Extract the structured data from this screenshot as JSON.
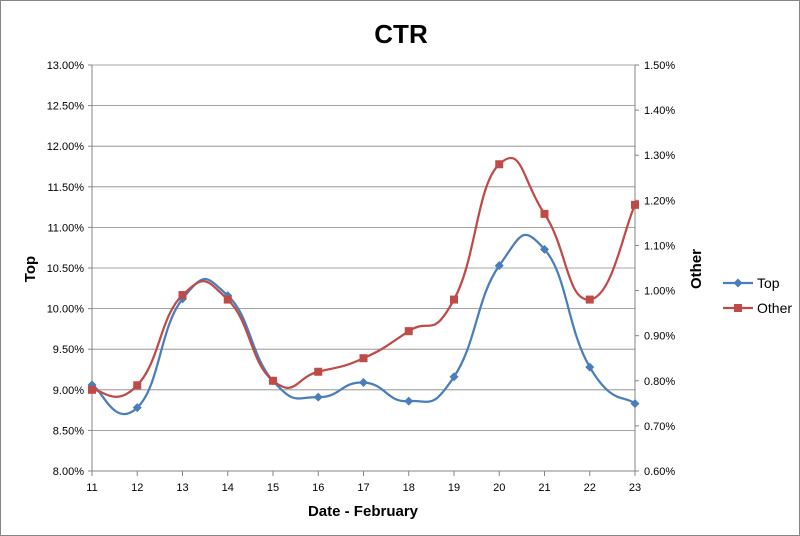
{
  "chart_data": {
    "type": "line",
    "title": "CTR",
    "xlabel": "Date - February",
    "ylabel_left": "Top",
    "ylabel_right": "Other",
    "x": [
      "11",
      "12",
      "13",
      "14",
      "15",
      "16",
      "17",
      "18",
      "19",
      "20",
      "21",
      "22",
      "23"
    ],
    "ylim_left": [
      0.08,
      0.13
    ],
    "ylim_right": [
      0.006,
      0.015
    ],
    "y_ticks_left": [
      "8.00%",
      "8.50%",
      "9.00%",
      "9.50%",
      "10.00%",
      "10.50%",
      "11.00%",
      "11.50%",
      "12.00%",
      "12.50%",
      "13.00%"
    ],
    "y_ticks_right": [
      "0.60%",
      "0.70%",
      "0.80%",
      "0.90%",
      "1.00%",
      "1.10%",
      "1.20%",
      "1.30%",
      "1.40%",
      "1.50%"
    ],
    "grid": "horizontal, left axis",
    "smooth": true,
    "legend_position": "right",
    "series": [
      {
        "name": "Top",
        "axis": "left",
        "color": "#4a7ebb",
        "marker": "diamond",
        "values": [
          0.0906,
          0.0878,
          0.1012,
          0.1016,
          0.0911,
          0.0891,
          0.0909,
          0.0886,
          0.0916,
          0.1053,
          0.1073,
          0.0928,
          0.0883
        ]
      },
      {
        "name": "Other",
        "axis": "right",
        "color": "#be4b48",
        "marker": "square",
        "values": [
          0.0078,
          0.0079,
          0.0099,
          0.0098,
          0.008,
          0.0082,
          0.0085,
          0.0091,
          0.0098,
          0.0128,
          0.0117,
          0.0098,
          0.0119
        ]
      }
    ]
  }
}
